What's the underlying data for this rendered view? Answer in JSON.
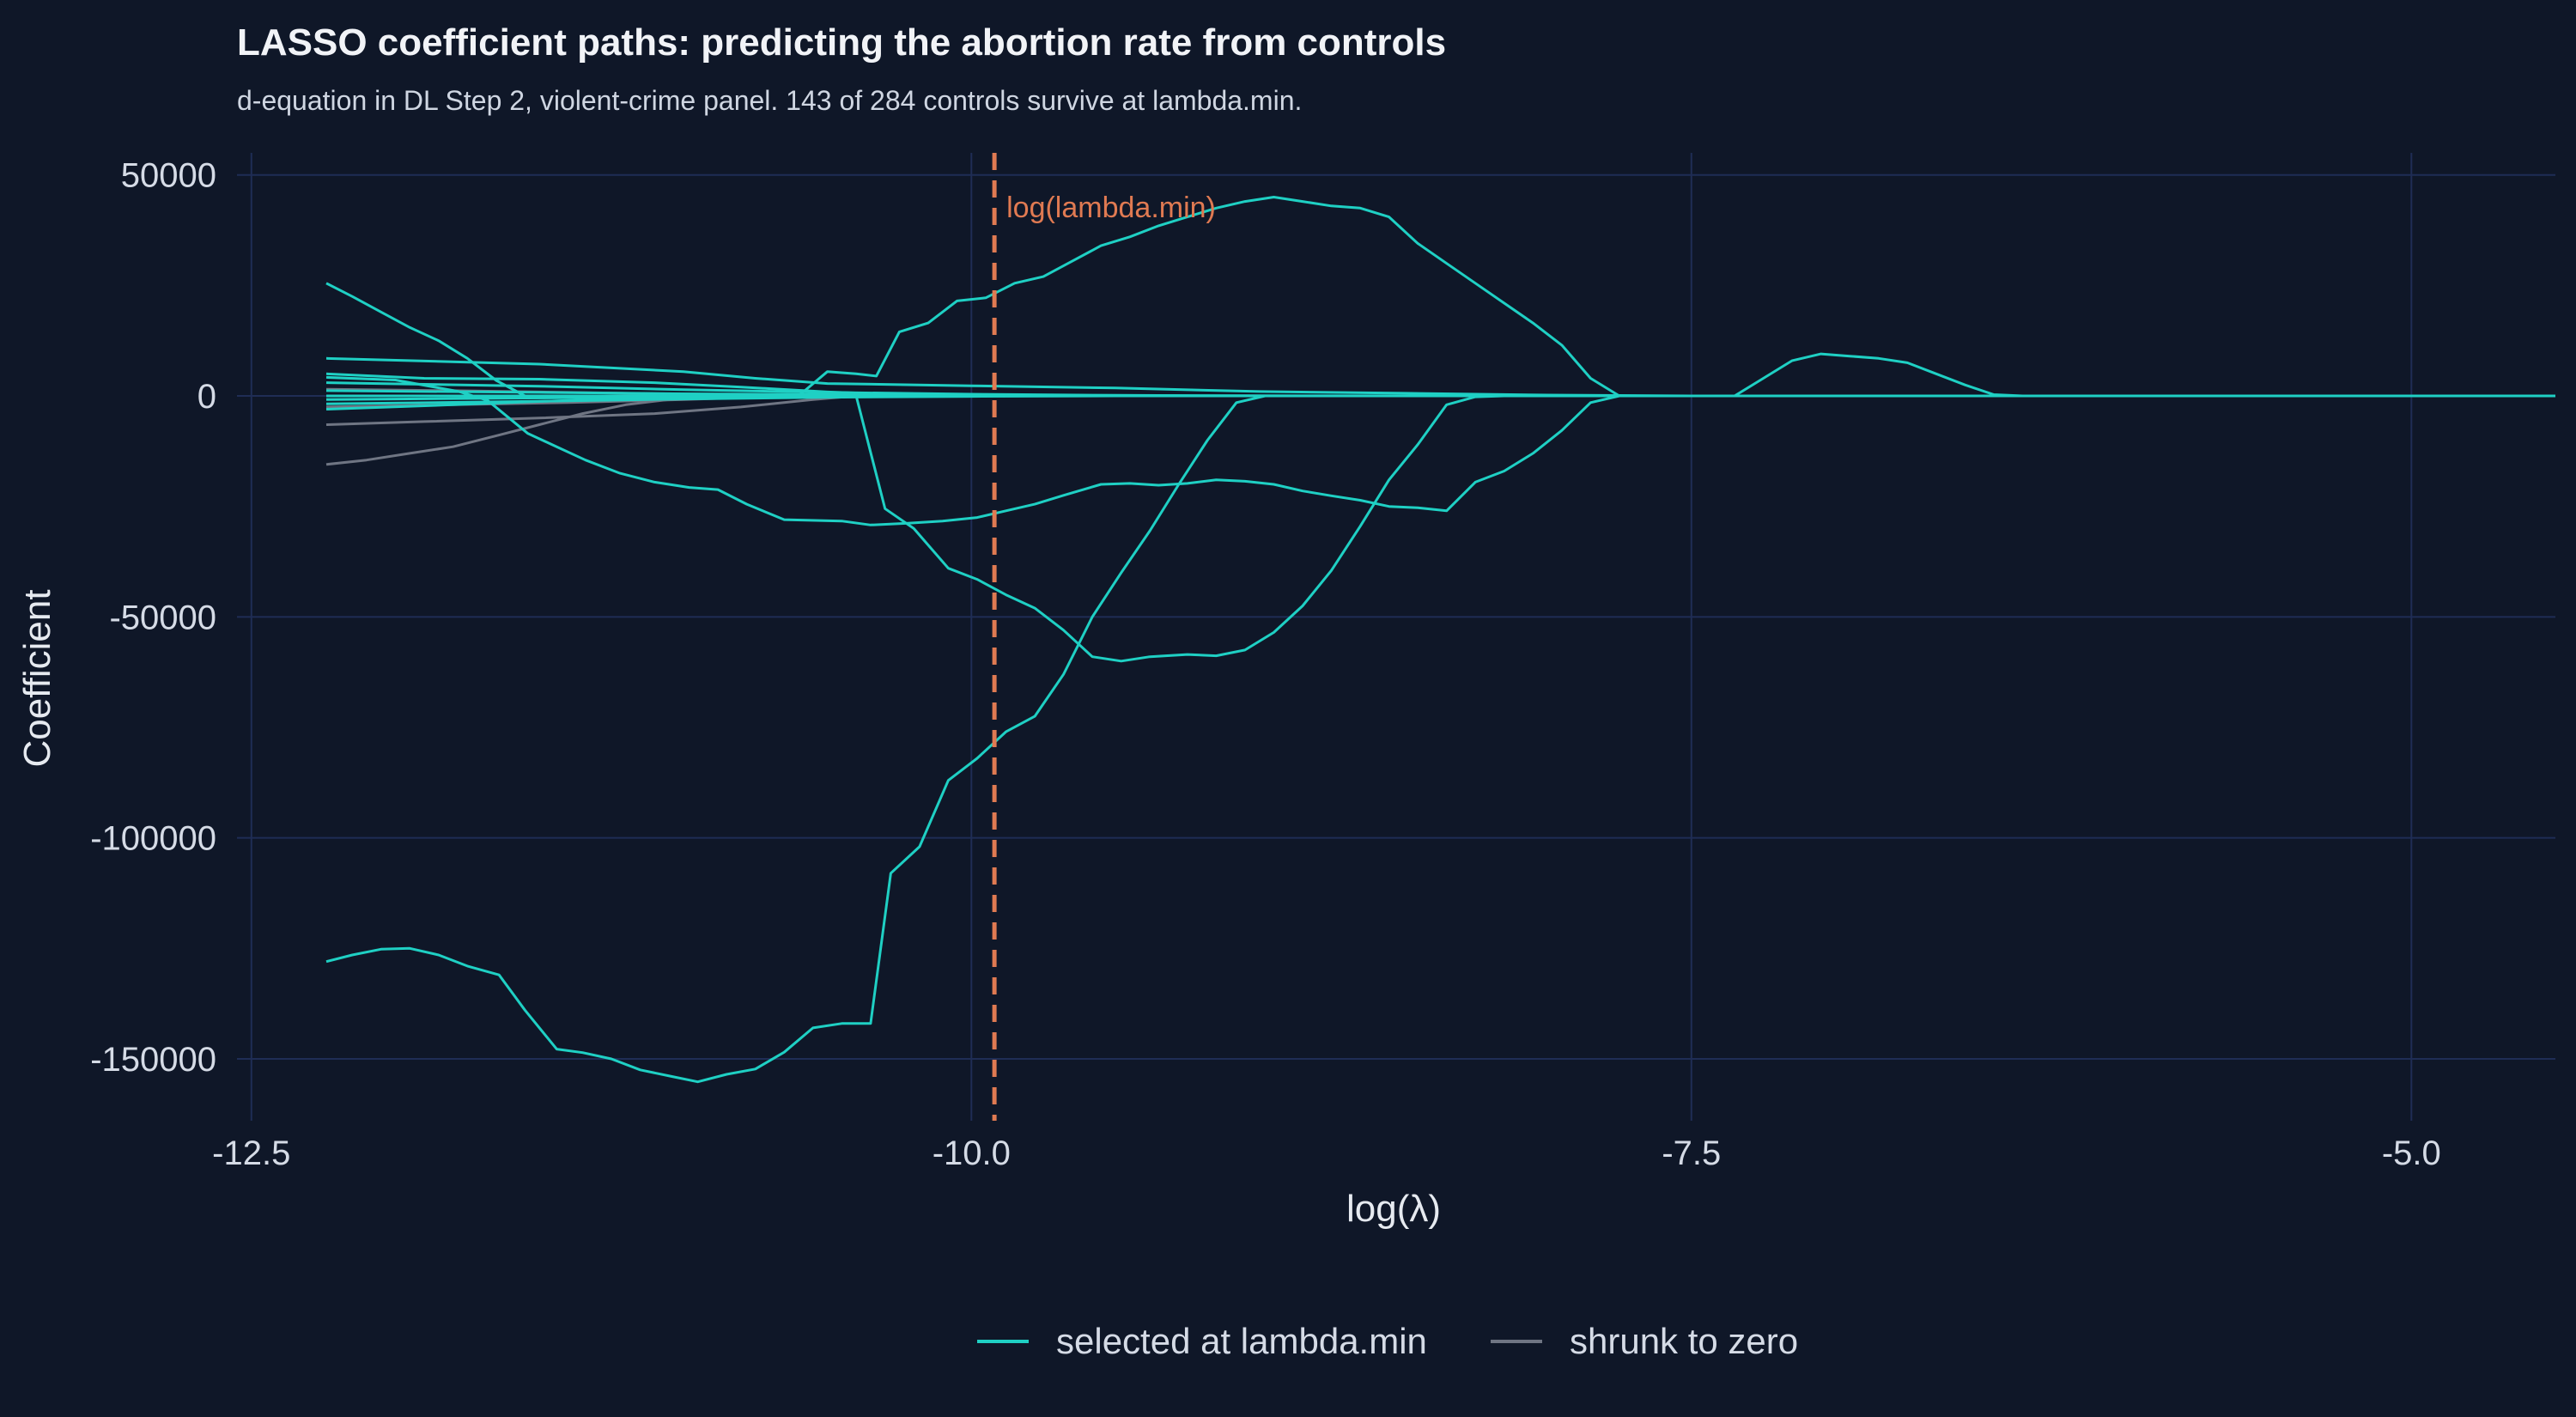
{
  "colors": {
    "background": "#0f1728",
    "grid": "#1f2d55",
    "selected": "#1fd0c4",
    "shrunk": "#6f7583",
    "lambda_line": "#e07a52"
  },
  "chart_data": {
    "type": "line",
    "title": "LASSO coefficient paths: predicting the abortion rate from controls",
    "subtitle": "d-equation in DL Step 2, violent-crime panel. 143 of 284 controls survive at lambda.min.",
    "xlabel": "log(λ)",
    "ylabel": "Coefficient",
    "xlim": [
      -12.55,
      -4.5
    ],
    "ylim": [
      -164000,
      55000
    ],
    "x_ticks": [
      -12.5,
      -10.0,
      -7.5,
      -5.0
    ],
    "x_tick_labels": [
      "-12.5",
      "-10.0",
      "-7.5",
      "-5.0"
    ],
    "y_ticks": [
      50000,
      0,
      -50000,
      -100000,
      -150000
    ],
    "y_tick_labels": [
      "50000",
      "0",
      "-50000",
      "-100000",
      "-150000"
    ],
    "grid": true,
    "legend_position": "bottom",
    "legend": [
      {
        "label": "selected at lambda.min",
        "color_key": "selected"
      },
      {
        "label": "shrunk to zero",
        "color_key": "shrunk"
      }
    ],
    "annotation": {
      "label": "log(lambda.min)",
      "x": -9.92
    },
    "series": [
      {
        "group": "selected",
        "points": [
          [
            -12.24,
            -128000
          ],
          [
            -12.15,
            -126500
          ],
          [
            -12.05,
            -125200
          ],
          [
            -11.95,
            -125000
          ],
          [
            -11.85,
            -126500
          ],
          [
            -11.75,
            -129000
          ],
          [
            -11.64,
            -131000
          ],
          [
            -11.55,
            -139000
          ],
          [
            -11.44,
            -147800
          ],
          [
            -11.35,
            -148600
          ],
          [
            -11.25,
            -150000
          ],
          [
            -11.15,
            -152500
          ],
          [
            -11.04,
            -154000
          ],
          [
            -10.95,
            -155200
          ],
          [
            -10.85,
            -153500
          ],
          [
            -10.75,
            -152300
          ],
          [
            -10.65,
            -148500
          ],
          [
            -10.55,
            -143000
          ],
          [
            -10.45,
            -142000
          ],
          [
            -10.35,
            -142000
          ],
          [
            -10.28,
            -108000
          ],
          [
            -10.18,
            -102000
          ],
          [
            -10.08,
            -87000
          ],
          [
            -9.98,
            -82000
          ],
          [
            -9.88,
            -76000
          ],
          [
            -9.78,
            -72500
          ],
          [
            -9.68,
            -63000
          ],
          [
            -9.58,
            -50000
          ],
          [
            -9.48,
            -40000
          ],
          [
            -9.38,
            -30500
          ],
          [
            -9.28,
            -20000
          ],
          [
            -9.18,
            -10000
          ],
          [
            -9.08,
            -1500
          ],
          [
            -8.98,
            0
          ],
          [
            -4.5,
            0
          ]
        ]
      },
      {
        "group": "selected",
        "points": [
          [
            -12.24,
            4200
          ],
          [
            -12.0,
            3600
          ],
          [
            -11.78,
            1000
          ],
          [
            -11.68,
            -1000
          ],
          [
            -11.54,
            -8500
          ],
          [
            -11.44,
            -11500
          ],
          [
            -11.34,
            -14500
          ],
          [
            -11.22,
            -17500
          ],
          [
            -11.1,
            -19500
          ],
          [
            -10.98,
            -20700
          ],
          [
            -10.88,
            -21200
          ],
          [
            -10.78,
            -24500
          ],
          [
            -10.65,
            -28000
          ],
          [
            -10.45,
            -28300
          ],
          [
            -10.35,
            -29200
          ],
          [
            -10.22,
            -28800
          ],
          [
            -10.1,
            -28300
          ],
          [
            -9.98,
            -27500
          ],
          [
            -9.88,
            -26000
          ],
          [
            -9.78,
            -24500
          ],
          [
            -9.68,
            -22500
          ],
          [
            -9.55,
            -20000
          ],
          [
            -9.45,
            -19800
          ],
          [
            -9.35,
            -20200
          ],
          [
            -9.25,
            -19800
          ],
          [
            -9.15,
            -19000
          ],
          [
            -9.05,
            -19300
          ],
          [
            -8.95,
            -20000
          ],
          [
            -8.85,
            -21500
          ],
          [
            -8.75,
            -22600
          ],
          [
            -8.65,
            -23600
          ],
          [
            -8.55,
            -25000
          ],
          [
            -8.45,
            -25300
          ],
          [
            -8.35,
            -26000
          ],
          [
            -8.25,
            -19500
          ],
          [
            -8.15,
            -17000
          ],
          [
            -8.05,
            -13000
          ],
          [
            -7.95,
            -7800
          ],
          [
            -7.85,
            -1500
          ],
          [
            -7.75,
            0
          ],
          [
            -4.5,
            0
          ]
        ]
      },
      {
        "group": "selected",
        "points": [
          [
            -12.24,
            25500
          ],
          [
            -12.15,
            22500
          ],
          [
            -12.05,
            19000
          ],
          [
            -11.95,
            15500
          ],
          [
            -11.85,
            12500
          ],
          [
            -11.75,
            8500
          ],
          [
            -11.65,
            3500
          ],
          [
            -11.55,
            0
          ],
          [
            -10.4,
            0
          ],
          [
            -10.3,
            -25500
          ],
          [
            -10.2,
            -30000
          ],
          [
            -10.08,
            -39000
          ],
          [
            -9.98,
            -41500
          ],
          [
            -9.88,
            -45000
          ],
          [
            -9.78,
            -48000
          ],
          [
            -9.68,
            -53000
          ],
          [
            -9.58,
            -59000
          ],
          [
            -9.48,
            -60000
          ],
          [
            -9.38,
            -59000
          ],
          [
            -9.25,
            -58500
          ],
          [
            -9.15,
            -58800
          ],
          [
            -9.05,
            -57500
          ],
          [
            -8.95,
            -53500
          ],
          [
            -8.85,
            -47500
          ],
          [
            -8.75,
            -39500
          ],
          [
            -8.65,
            -29500
          ],
          [
            -8.55,
            -19000
          ],
          [
            -8.45,
            -11000
          ],
          [
            -8.35,
            -2000
          ],
          [
            -8.25,
            -200
          ],
          [
            -8.15,
            0
          ],
          [
            -4.5,
            0
          ]
        ]
      },
      {
        "group": "selected",
        "points": [
          [
            -12.24,
            0
          ],
          [
            -10.6,
            0
          ],
          [
            -10.5,
            5500
          ],
          [
            -10.4,
            5000
          ],
          [
            -10.33,
            4500
          ],
          [
            -10.25,
            14500
          ],
          [
            -10.15,
            16500
          ],
          [
            -10.05,
            21500
          ],
          [
            -9.95,
            22200
          ],
          [
            -9.85,
            25500
          ],
          [
            -9.75,
            27000
          ],
          [
            -9.65,
            30500
          ],
          [
            -9.55,
            34000
          ],
          [
            -9.45,
            36000
          ],
          [
            -9.35,
            38500
          ],
          [
            -9.25,
            40500
          ],
          [
            -9.15,
            42500
          ],
          [
            -9.05,
            44000
          ],
          [
            -8.95,
            45000
          ],
          [
            -8.85,
            44000
          ],
          [
            -8.75,
            43000
          ],
          [
            -8.65,
            42500
          ],
          [
            -8.55,
            40500
          ],
          [
            -8.45,
            34500
          ],
          [
            -8.35,
            30000
          ],
          [
            -8.25,
            25500
          ],
          [
            -8.15,
            21000
          ],
          [
            -8.05,
            16500
          ],
          [
            -7.95,
            11500
          ],
          [
            -7.85,
            4000
          ],
          [
            -7.75,
            0
          ],
          [
            -4.5,
            0
          ]
        ]
      },
      {
        "group": "selected",
        "points": [
          [
            -12.24,
            0
          ],
          [
            -7.35,
            0
          ],
          [
            -7.25,
            4000
          ],
          [
            -7.15,
            8000
          ],
          [
            -7.05,
            9500
          ],
          [
            -6.95,
            9000
          ],
          [
            -6.85,
            8500
          ],
          [
            -6.75,
            7500
          ],
          [
            -6.65,
            5000
          ],
          [
            -6.55,
            2500
          ],
          [
            -6.45,
            300
          ],
          [
            -6.35,
            0
          ],
          [
            -4.5,
            0
          ]
        ]
      },
      {
        "group": "selected",
        "points": [
          [
            -12.24,
            8500
          ],
          [
            -11.5,
            7200
          ],
          [
            -11.0,
            5500
          ],
          [
            -10.75,
            4000
          ],
          [
            -10.5,
            2800
          ],
          [
            -10.0,
            2300
          ],
          [
            -9.5,
            1800
          ],
          [
            -9.0,
            1000
          ],
          [
            -8.5,
            600
          ],
          [
            -8.0,
            200
          ],
          [
            -7.5,
            0
          ],
          [
            -4.5,
            0
          ]
        ]
      },
      {
        "group": "selected",
        "points": [
          [
            -12.24,
            3000
          ],
          [
            -11.5,
            2200
          ],
          [
            -11.0,
            1400
          ],
          [
            -10.5,
            800
          ],
          [
            -10.0,
            400
          ],
          [
            -9.5,
            150
          ],
          [
            -9.0,
            0
          ],
          [
            -4.5,
            0
          ]
        ]
      },
      {
        "group": "selected",
        "points": [
          [
            -12.24,
            -1800
          ],
          [
            -11.5,
            -1200
          ],
          [
            -11.0,
            -700
          ],
          [
            -10.5,
            -300
          ],
          [
            -10.0,
            -100
          ],
          [
            -9.5,
            0
          ],
          [
            -4.5,
            0
          ]
        ]
      },
      {
        "group": "selected",
        "points": [
          [
            -12.24,
            1200
          ],
          [
            -11.5,
            800
          ],
          [
            -11.0,
            500
          ],
          [
            -10.5,
            300
          ],
          [
            -10.0,
            150
          ],
          [
            -9.0,
            50
          ],
          [
            -8.0,
            0
          ],
          [
            -4.5,
            0
          ]
        ]
      },
      {
        "group": "selected",
        "points": [
          [
            -12.24,
            -800
          ],
          [
            -11.6,
            -500
          ],
          [
            -11.0,
            -250
          ],
          [
            -10.4,
            -100
          ],
          [
            -9.8,
            0
          ],
          [
            -4.5,
            0
          ]
        ]
      },
      {
        "group": "selected",
        "points": [
          [
            -12.24,
            -3000
          ],
          [
            -11.8,
            -2000
          ],
          [
            -11.4,
            -1000
          ],
          [
            -11.0,
            -300
          ],
          [
            -10.7,
            0
          ],
          [
            -4.5,
            0
          ]
        ]
      },
      {
        "group": "selected",
        "points": [
          [
            -12.24,
            5000
          ],
          [
            -11.9,
            4000
          ],
          [
            -11.5,
            3800
          ],
          [
            -11.1,
            3000
          ],
          [
            -10.8,
            2000
          ],
          [
            -10.5,
            900
          ],
          [
            -10.2,
            200
          ],
          [
            -9.9,
            0
          ],
          [
            -4.5,
            0
          ]
        ]
      },
      {
        "group": "shrunk",
        "points": [
          [
            -12.24,
            -15500
          ],
          [
            -12.1,
            -14500
          ],
          [
            -11.95,
            -13000
          ],
          [
            -11.8,
            -11500
          ],
          [
            -11.65,
            -9000
          ],
          [
            -11.5,
            -6500
          ],
          [
            -11.35,
            -4000
          ],
          [
            -11.2,
            -2000
          ],
          [
            -11.05,
            -800
          ],
          [
            -10.9,
            0
          ],
          [
            -4.5,
            0
          ]
        ]
      },
      {
        "group": "shrunk",
        "points": [
          [
            -12.24,
            -6500
          ],
          [
            -11.9,
            -5800
          ],
          [
            -11.5,
            -5000
          ],
          [
            -11.1,
            -4000
          ],
          [
            -10.8,
            -2500
          ],
          [
            -10.55,
            -800
          ],
          [
            -10.4,
            0
          ],
          [
            -4.5,
            0
          ]
        ]
      },
      {
        "group": "shrunk",
        "points": [
          [
            -12.24,
            -2500
          ],
          [
            -11.8,
            -2000
          ],
          [
            -11.4,
            -1500
          ],
          [
            -11.0,
            -800
          ],
          [
            -10.7,
            -200
          ],
          [
            -10.5,
            0
          ],
          [
            -4.5,
            0
          ]
        ]
      },
      {
        "group": "shrunk",
        "points": [
          [
            -12.24,
            1500
          ],
          [
            -11.8,
            1200
          ],
          [
            -11.3,
            700
          ],
          [
            -10.9,
            300
          ],
          [
            -10.6,
            0
          ],
          [
            -4.5,
            0
          ]
        ]
      }
    ]
  }
}
